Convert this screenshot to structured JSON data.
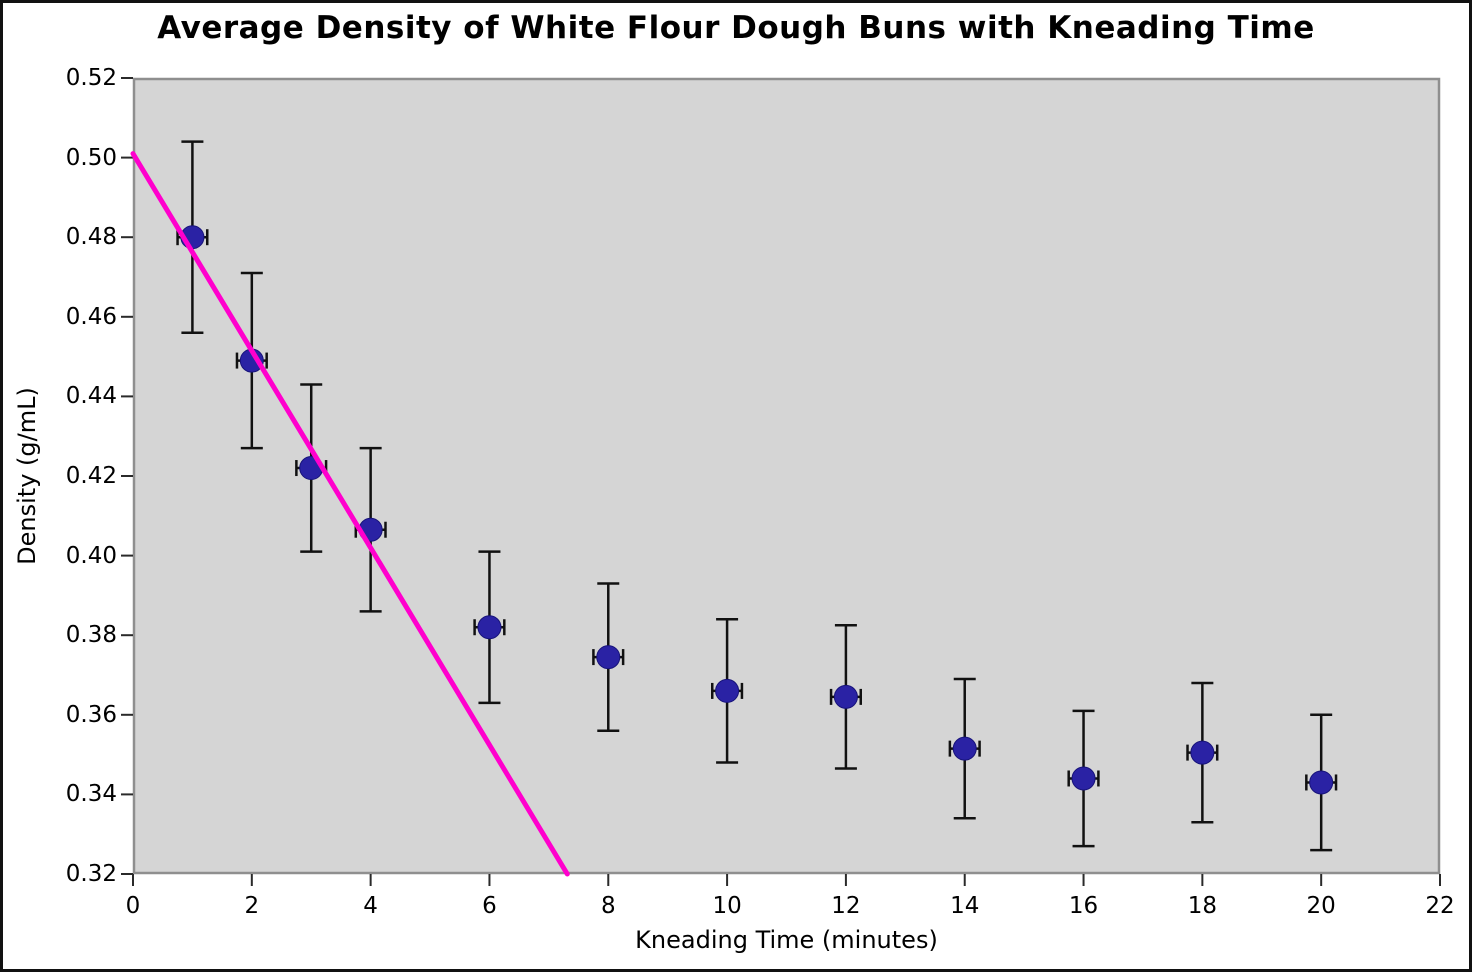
{
  "page": {
    "background": "#ffffff",
    "frame_color": "#111111"
  },
  "chart_data": {
    "type": "scatter",
    "title": "Average Density of White Flour Dough Buns with Kneading Time",
    "xlabel": "Kneading Time (minutes)",
    "ylabel": "Density (g/mL)",
    "grid": false,
    "legend": "none",
    "x_axis": {
      "min": 0,
      "max": 22,
      "tick_values": [
        0,
        2,
        4,
        6,
        8,
        10,
        12,
        14,
        16,
        18,
        20,
        22
      ],
      "tick_labels": [
        "0",
        "2",
        "4",
        "6",
        "8",
        "10",
        "12",
        "14",
        "16",
        "18",
        "20",
        "22"
      ]
    },
    "y_axis": {
      "min": 0.32,
      "max": 0.52,
      "tick_values": [
        0.52,
        0.5,
        0.48,
        0.46,
        0.44,
        0.42,
        0.4,
        0.38,
        0.36,
        0.34,
        0.32
      ],
      "tick_labels": [
        "0.52",
        "0.50",
        "0.48",
        "0.46",
        "0.44",
        "0.42",
        "0.40",
        "0.38",
        "0.36",
        "0.34",
        "0.32"
      ]
    },
    "plot_background": "#d5d5d5",
    "plot_border_color": "#8f8f8f",
    "tick_color": "#2a2a2a",
    "point_color": "#2a22a4",
    "errorbar_color": "#111111",
    "trendline_color": "#ff00cd",
    "points": [
      {
        "x": 1,
        "y": 0.48,
        "y_err": 0.024,
        "x_err": 0.25
      },
      {
        "x": 2,
        "y": 0.449,
        "y_err": 0.022,
        "x_err": 0.25
      },
      {
        "x": 3,
        "y": 0.422,
        "y_err": 0.021,
        "x_err": 0.25
      },
      {
        "x": 4,
        "y": 0.4065,
        "y_err": 0.0205,
        "x_err": 0.25
      },
      {
        "x": 6,
        "y": 0.382,
        "y_err": 0.019,
        "x_err": 0.25
      },
      {
        "x": 8,
        "y": 0.3745,
        "y_err": 0.0185,
        "x_err": 0.25
      },
      {
        "x": 10,
        "y": 0.366,
        "y_err": 0.018,
        "x_err": 0.25
      },
      {
        "x": 12,
        "y": 0.3645,
        "y_err": 0.018,
        "x_err": 0.25
      },
      {
        "x": 14,
        "y": 0.3515,
        "y_err": 0.0175,
        "x_err": 0.25
      },
      {
        "x": 16,
        "y": 0.344,
        "y_err": 0.017,
        "x_err": 0.25
      },
      {
        "x": 18,
        "y": 0.3505,
        "y_err": 0.0175,
        "x_err": 0.25
      },
      {
        "x": 20,
        "y": 0.343,
        "y_err": 0.017,
        "x_err": 0.25
      }
    ],
    "trendline": {
      "x1": 0,
      "y1": 0.501,
      "x2": 7.31,
      "y2": 0.32
    }
  }
}
